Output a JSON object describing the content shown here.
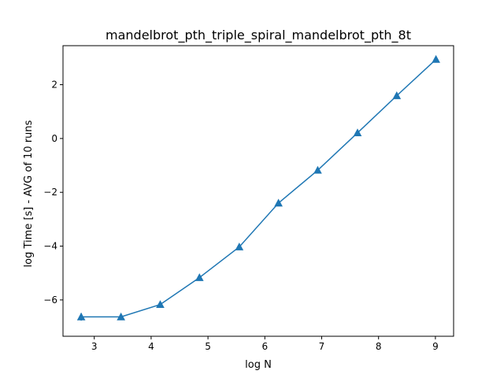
{
  "chart_data": {
    "type": "line",
    "title": "mandelbrot_pth_triple_spiral_mandelbrot_pth_8t",
    "xlabel": "log N",
    "ylabel": "log Time  [s] - AVG of 10 runs",
    "xlim": [
      2.45,
      9.32
    ],
    "ylim": [
      -7.35,
      3.45
    ],
    "xticks": [
      3,
      4,
      5,
      6,
      7,
      8,
      9
    ],
    "xtick_labels": [
      "3",
      "4",
      "5",
      "6",
      "7",
      "8",
      "9"
    ],
    "yticks": [
      -6,
      -4,
      -2,
      0,
      2
    ],
    "ytick_labels": [
      "−6",
      "−4",
      "−2",
      "0",
      "2"
    ],
    "grid": false,
    "color": "#1f77b4",
    "marker": "triangle-up",
    "x": [
      2.77,
      3.47,
      4.16,
      4.85,
      5.55,
      6.24,
      6.93,
      7.63,
      8.32,
      9.01
    ],
    "y": [
      -6.63,
      -6.63,
      -6.17,
      -5.17,
      -4.03,
      -2.4,
      -1.18,
      0.21,
      1.59,
      2.94
    ],
    "error": [
      0.14,
      0.0,
      0.0,
      0.08,
      0.0,
      0.0,
      0.0,
      0.0,
      0.0,
      0.0
    ]
  }
}
